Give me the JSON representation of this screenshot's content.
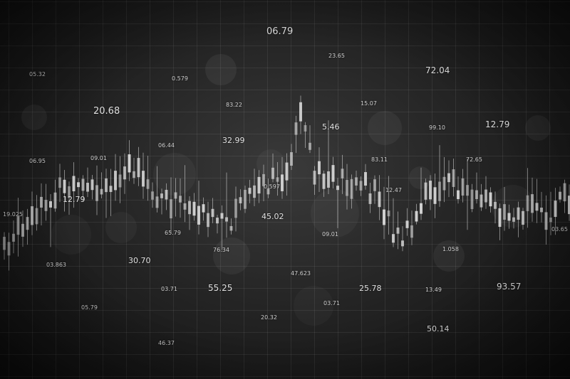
{
  "labels": {
    "n0": "06.79",
    "n1": "23.65",
    "n2": "72.04",
    "n3": "05.32",
    "n4": "0.579",
    "n5": "20.68",
    "n6": "83.22",
    "n7": "15.07",
    "n8": "5.46",
    "n9": "99.10",
    "n10": "12.79",
    "n11": "06.44",
    "n12": "32.99",
    "n13": "06.95",
    "n14": "09.01",
    "n15": "83.11",
    "n16": "72.65",
    "n17": "12.79",
    "n18": "0.597",
    "n19": "12.47",
    "n20": "19.025",
    "n21": "45.02",
    "n22": "65.79",
    "n23": "09.01",
    "n24": "03.65",
    "n25": "76.34",
    "n26": "1.058",
    "n27": "03.863",
    "n28": "30.70",
    "n29": "47.623",
    "n30": "55.25",
    "n31": "25.78",
    "n32": "93.57",
    "n33": "03.71",
    "n34": "13.49",
    "n35": "05.79",
    "n36": "03.71",
    "n37": "20.32",
    "n38": "50.14",
    "n39": "46.37"
  },
  "chart_data": {
    "type": "candlestick",
    "candle_color": "#d8d8d8",
    "background": "#1e1e1e"
  }
}
